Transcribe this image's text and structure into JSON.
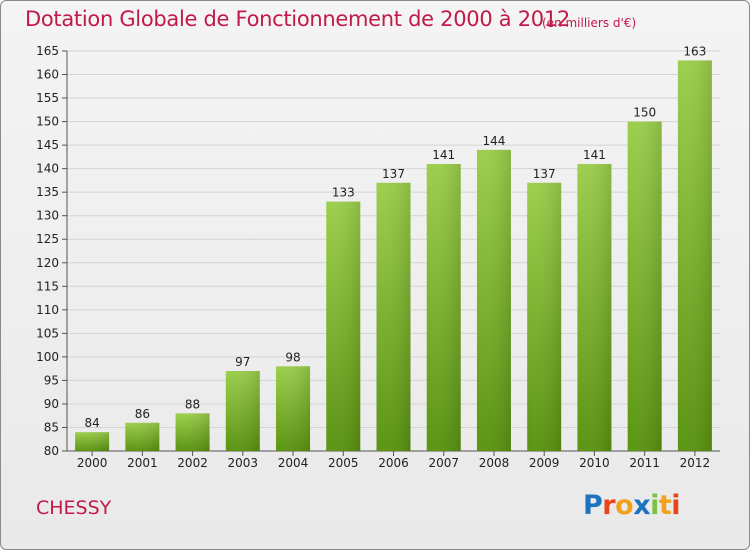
{
  "header": {
    "title": "Dotation Globale de Fonctionnement de 2000 à 2012",
    "unit": "(en milliers d'€)"
  },
  "footer": {
    "city": "CHESSY",
    "logo_letters": [
      "P",
      "r",
      "o",
      "x",
      "i",
      "t",
      "i"
    ],
    "logo_colors": [
      "#1e73be",
      "#e8451d",
      "#f2a11d",
      "#1e73be",
      "#7cc242",
      "#f2a11d",
      "#e8451d"
    ]
  },
  "colors": {
    "bar_top": "#9ccf4c",
    "bar_bottom": "#5a9410",
    "text_accent": "#c11a4a",
    "grid": "#d3d3d3"
  },
  "chart_data": {
    "type": "bar",
    "title": "Dotation Globale de Fonctionnement de 2000 à 2012",
    "subtitle": "(en milliers d'€)",
    "xlabel": "",
    "ylabel": "",
    "categories": [
      "2000",
      "2001",
      "2002",
      "2003",
      "2004",
      "2005",
      "2006",
      "2007",
      "2008",
      "2009",
      "2010",
      "2011",
      "2012"
    ],
    "values": [
      84,
      86,
      88,
      97,
      98,
      133,
      137,
      141,
      144,
      137,
      141,
      150,
      163
    ],
    "ylim": [
      80,
      165
    ],
    "yticks": [
      80,
      85,
      90,
      95,
      100,
      105,
      110,
      115,
      120,
      125,
      130,
      135,
      140,
      145,
      150,
      155,
      160,
      165
    ],
    "grid": true,
    "legend": "none"
  }
}
